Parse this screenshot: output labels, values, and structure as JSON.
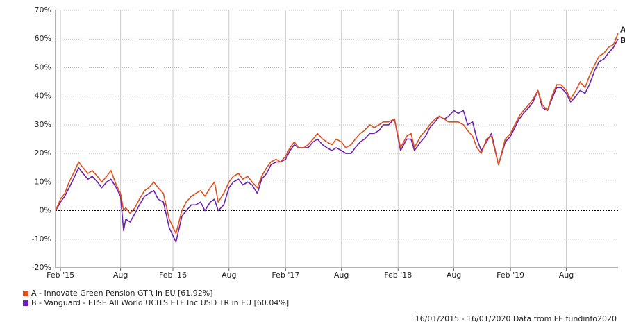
{
  "chart_data": {
    "type": "line",
    "xlim": [
      "2015-01-16",
      "2020-01-16"
    ],
    "xticks": [
      {
        "value": "2015-02-01",
        "label": "Feb '15"
      },
      {
        "value": "2015-08-15",
        "label": "Aug"
      },
      {
        "value": "2016-02-01",
        "label": "Feb '16"
      },
      {
        "value": "2016-08-01",
        "label": "Aug"
      },
      {
        "value": "2017-02-01",
        "label": "Feb '17"
      },
      {
        "value": "2017-08-01",
        "label": "Aug"
      },
      {
        "value": "2018-02-01",
        "label": "Feb '18"
      },
      {
        "value": "2018-08-01",
        "label": "Aug"
      },
      {
        "value": "2019-02-01",
        "label": "Feb '19"
      },
      {
        "value": "2019-08-01",
        "label": "Aug"
      }
    ],
    "ylim": [
      -20,
      70
    ],
    "yticks": [
      {
        "value": -20,
        "label": "-20%"
      },
      {
        "value": -10,
        "label": "-10%"
      },
      {
        "value": 0,
        "label": "0%"
      },
      {
        "value": 10,
        "label": "10%"
      },
      {
        "value": 20,
        "label": "20%"
      },
      {
        "value": 30,
        "label": "30%"
      },
      {
        "value": 40,
        "label": "40%"
      },
      {
        "value": 50,
        "label": "50%"
      },
      {
        "value": 60,
        "label": "60%"
      },
      {
        "value": 70,
        "label": "70%"
      }
    ],
    "grid": true,
    "footer": "16/01/2015 - 16/01/2020 Data from FE fundinfo2020",
    "x": [
      "2015-01-16",
      "2015-02-01",
      "2015-02-15",
      "2015-03-01",
      "2015-03-15",
      "2015-04-01",
      "2015-04-15",
      "2015-05-01",
      "2015-05-15",
      "2015-06-01",
      "2015-06-15",
      "2015-07-01",
      "2015-07-15",
      "2015-08-01",
      "2015-08-15",
      "2015-08-25",
      "2015-09-01",
      "2015-09-15",
      "2015-10-01",
      "2015-10-15",
      "2015-11-01",
      "2015-11-15",
      "2015-12-01",
      "2015-12-15",
      "2016-01-01",
      "2016-01-20",
      "2016-02-11",
      "2016-03-01",
      "2016-03-15",
      "2016-04-01",
      "2016-04-15",
      "2016-05-01",
      "2016-05-15",
      "2016-06-01",
      "2016-06-15",
      "2016-06-27",
      "2016-07-15",
      "2016-08-01",
      "2016-08-15",
      "2016-09-01",
      "2016-09-15",
      "2016-10-01",
      "2016-10-15",
      "2016-11-01",
      "2016-11-15",
      "2016-12-01",
      "2016-12-15",
      "2017-01-01",
      "2017-01-15",
      "2017-02-01",
      "2017-02-15",
      "2017-03-01",
      "2017-03-15",
      "2017-04-01",
      "2017-04-15",
      "2017-05-01",
      "2017-05-15",
      "2017-06-01",
      "2017-06-15",
      "2017-07-01",
      "2017-07-15",
      "2017-08-01",
      "2017-08-15",
      "2017-09-01",
      "2017-09-15",
      "2017-10-01",
      "2017-10-15",
      "2017-11-01",
      "2017-11-15",
      "2017-12-01",
      "2017-12-15",
      "2018-01-01",
      "2018-01-20",
      "2018-02-09",
      "2018-03-01",
      "2018-03-15",
      "2018-03-26",
      "2018-04-15",
      "2018-05-01",
      "2018-05-15",
      "2018-06-01",
      "2018-06-15",
      "2018-07-01",
      "2018-07-15",
      "2018-08-01",
      "2018-08-15",
      "2018-09-01",
      "2018-09-15",
      "2018-10-01",
      "2018-10-15",
      "2018-10-29",
      "2018-11-15",
      "2018-12-01",
      "2018-12-24",
      "2019-01-15",
      "2019-02-01",
      "2019-02-15",
      "2019-03-01",
      "2019-03-15",
      "2019-04-01",
      "2019-04-15",
      "2019-05-01",
      "2019-05-15",
      "2019-06-01",
      "2019-06-15",
      "2019-07-01",
      "2019-07-15",
      "2019-08-01",
      "2019-08-15",
      "2019-09-01",
      "2019-09-15",
      "2019-10-01",
      "2019-10-15",
      "2019-11-01",
      "2019-11-15",
      "2019-12-01",
      "2019-12-15",
      "2020-01-01",
      "2020-01-16"
    ],
    "series": [
      {
        "name": "A - Innovate Green Pension GTR in EU [61.92%]",
        "end_label": "A",
        "color": "#e0501c",
        "values": [
          0,
          4,
          6,
          10,
          13,
          17,
          15,
          13,
          14,
          12,
          10,
          12,
          14,
          9,
          6,
          0,
          1,
          -1,
          1,
          4,
          7,
          8,
          10,
          8,
          6,
          -3,
          -8,
          0,
          3,
          5,
          6,
          7,
          5,
          8,
          10,
          3,
          6,
          10,
          12,
          13,
          11,
          12,
          10,
          8,
          12,
          15,
          17,
          18,
          17,
          19,
          22,
          24,
          22,
          22,
          23,
          25,
          27,
          25,
          24,
          23,
          25,
          24,
          22,
          23,
          25,
          27,
          28,
          30,
          29,
          30,
          31,
          31,
          32,
          22,
          26,
          27,
          22,
          26,
          28,
          30,
          32,
          33,
          32,
          31,
          31,
          31,
          30,
          28,
          26,
          22,
          20,
          25,
          26,
          16,
          25,
          27,
          30,
          33,
          35,
          37,
          39,
          42,
          37,
          35,
          40,
          44,
          44,
          42,
          39,
          42,
          45,
          43,
          47,
          51,
          54,
          55,
          57,
          58,
          61.92
        ]
      },
      {
        "name": "B - Vanguard - FTSE All World UCITS ETF Inc USD TR in EU [60.04%]",
        "end_label": "B",
        "color": "#6a22b0",
        "values": [
          0,
          3,
          5,
          8,
          11,
          15,
          13,
          11,
          12,
          10,
          8,
          10,
          11,
          8,
          5,
          -7,
          -3,
          -4,
          -1,
          2,
          5,
          6,
          7,
          4,
          3,
          -6,
          -11,
          -2,
          0,
          2,
          2,
          3,
          0,
          3,
          4,
          0,
          2,
          8,
          10,
          11,
          9,
          10,
          9,
          6,
          11,
          13,
          16,
          17,
          17,
          18,
          21,
          23,
          22,
          22,
          22,
          24,
          25,
          23,
          22,
          21,
          22,
          21,
          20,
          20,
          22,
          24,
          25,
          27,
          27,
          28,
          30,
          30,
          32,
          21,
          25,
          25,
          21,
          24,
          26,
          29,
          31,
          33,
          32,
          33,
          35,
          34,
          35,
          30,
          31,
          25,
          21,
          24,
          27,
          16,
          24,
          26,
          29,
          32,
          34,
          36,
          38,
          42,
          36,
          35,
          39,
          43,
          43,
          41,
          38,
          40,
          42,
          41,
          44,
          49,
          52,
          53,
          55,
          57,
          60.04
        ]
      }
    ]
  }
}
